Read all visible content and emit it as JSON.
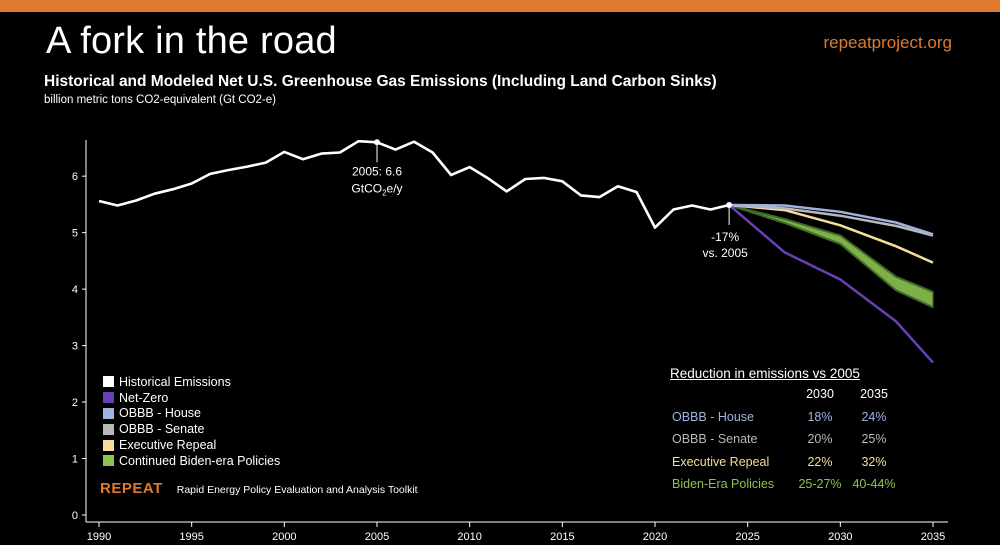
{
  "header": {
    "headline": "A fork in the road",
    "site": "repeatproject.org",
    "title": "Historical and Modeled Net U.S. Greenhouse Gas Emissions (Including Land Carbon Sinks)",
    "subtitle": "billion metric tons CO2-equivalent (Gt CO2-e)"
  },
  "colors": {
    "accent": "#e07a2e",
    "historical": "#ffffff",
    "netzero": "#6a3fb5",
    "house": "#9fb2e0",
    "senate": "#b8b8b8",
    "exec": "#f6dd9a",
    "biden": "#8dc34f",
    "biden_dark": "#3f6b2a"
  },
  "legend": [
    {
      "label": "Historical Emissions",
      "color": "#ffffff"
    },
    {
      "label": "Net-Zero",
      "color": "#6a3fb5"
    },
    {
      "label": "OBBB - House",
      "color": "#9fb2e0"
    },
    {
      "label": "OBBB - Senate",
      "color": "#b8b8b8"
    },
    {
      "label": "Executive Repeal",
      "color": "#f6dd9a"
    },
    {
      "label": "Continued Biden-era Policies",
      "color": "#8dc34f"
    }
  ],
  "brand": {
    "logo": "REPEAT",
    "tagline": "Rapid Energy Policy Evaluation and Analysis Toolkit"
  },
  "reduction_table": {
    "title": "Reduction in emissions vs 2005",
    "columns": [
      "2030",
      "2035"
    ],
    "rows": [
      {
        "name": "OBBB - House",
        "v2030": "18%",
        "v2035": "24%",
        "color": "#9fb2e0"
      },
      {
        "name": "OBBB - Senate",
        "v2030": "20%",
        "v2035": "25%",
        "color": "#b8b8b8"
      },
      {
        "name": "Executive Repeal",
        "v2030": "22%",
        "v2035": "32%",
        "color": "#f6dd9a"
      },
      {
        "name": "Biden-Era Policies",
        "v2030": "25-27%",
        "v2035": "40-44%",
        "color": "#8dc34f"
      }
    ]
  },
  "chart_data": {
    "type": "line",
    "title": "Historical and Modeled Net U.S. Greenhouse Gas Emissions (Including Land Carbon Sinks)",
    "ylabel": "billion metric tons CO2-equivalent (Gt CO2-e)",
    "xlim": [
      1990,
      2035
    ],
    "ylim": [
      0,
      6.8
    ],
    "xticks": [
      1990,
      1995,
      2000,
      2005,
      2010,
      2015,
      2020,
      2025,
      2030,
      2035
    ],
    "yticks": [
      0,
      1,
      2,
      3,
      4,
      5,
      6
    ],
    "series": [
      {
        "name": "Historical Emissions",
        "x": [
          1990,
          1991,
          1992,
          1993,
          1994,
          1995,
          1996,
          1997,
          1998,
          1999,
          2000,
          2001,
          2002,
          2003,
          2004,
          2005,
          2006,
          2007,
          2008,
          2009,
          2010,
          2011,
          2012,
          2013,
          2014,
          2015,
          2016,
          2017,
          2018,
          2019,
          2020,
          2021,
          2022,
          2023,
          2024
        ],
        "y": [
          5.56,
          5.48,
          5.57,
          5.69,
          5.77,
          5.87,
          6.04,
          6.11,
          6.17,
          6.24,
          6.43,
          6.3,
          6.4,
          6.42,
          6.62,
          6.6,
          6.47,
          6.61,
          6.42,
          6.02,
          6.16,
          5.96,
          5.73,
          5.95,
          5.97,
          5.91,
          5.66,
          5.63,
          5.82,
          5.72,
          5.09,
          5.41,
          5.48,
          5.41,
          5.49
        ]
      },
      {
        "name": "OBBB - House",
        "x": [
          2024,
          2027,
          2030,
          2033,
          2035
        ],
        "y": [
          5.49,
          5.48,
          5.37,
          5.18,
          4.97
        ]
      },
      {
        "name": "OBBB - Senate",
        "x": [
          2024,
          2027,
          2030,
          2033,
          2035
        ],
        "y": [
          5.49,
          5.43,
          5.3,
          5.12,
          4.95
        ]
      },
      {
        "name": "Executive Repeal",
        "x": [
          2024,
          2027,
          2030,
          2033,
          2035
        ],
        "y": [
          5.49,
          5.4,
          5.13,
          4.76,
          4.47
        ]
      },
      {
        "name": "Continued Biden-era Policies",
        "x": [
          2024,
          2027,
          2030,
          2033,
          2035
        ],
        "y_high": [
          5.49,
          5.24,
          4.95,
          4.22,
          3.95
        ],
        "y_low": [
          5.49,
          5.17,
          4.8,
          3.98,
          3.68
        ]
      },
      {
        "name": "Net-Zero",
        "x": [
          2024,
          2027,
          2030,
          2033,
          2035
        ],
        "y": [
          5.49,
          4.65,
          4.17,
          3.43,
          2.7
        ]
      }
    ],
    "annotations": [
      {
        "x": 2005,
        "y": 6.6,
        "line1": "2005: 6.6",
        "line2_base": "GtCO",
        "line2_sub": "2",
        "line2_tail": "e/y"
      },
      {
        "x": 2024,
        "y": 5.49,
        "line1": "-17%",
        "line2": "vs. 2005"
      }
    ],
    "legend_position": "bottom-left",
    "grid": false
  }
}
